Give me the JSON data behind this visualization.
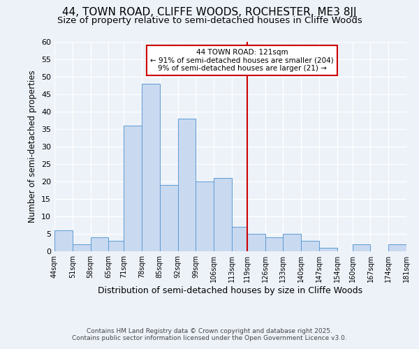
{
  "title": "44, TOWN ROAD, CLIFFE WOODS, ROCHESTER, ME3 8JJ",
  "subtitle": "Size of property relative to semi-detached houses in Cliffe Woods",
  "xlabel": "Distribution of semi-detached houses by size in Cliffe Woods",
  "ylabel": "Number of semi-detached properties",
  "bin_edges": [
    44,
    51,
    58,
    65,
    71,
    78,
    85,
    92,
    99,
    106,
    113,
    119,
    126,
    133,
    140,
    147,
    154,
    160,
    167,
    174,
    181
  ],
  "bar_heights": [
    6,
    2,
    4,
    3,
    36,
    48,
    19,
    38,
    20,
    21,
    7,
    5,
    4,
    5,
    3,
    1,
    0,
    2,
    0,
    2
  ],
  "bar_color": "#c9d9f0",
  "bar_edgecolor": "#5b9bd5",
  "vline_x": 119,
  "vline_color": "#cc0000",
  "ylim": [
    0,
    60
  ],
  "yticks": [
    0,
    5,
    10,
    15,
    20,
    25,
    30,
    35,
    40,
    45,
    50,
    55,
    60
  ],
  "annotation_title": "44 TOWN ROAD: 121sqm",
  "annotation_line1": "← 91% of semi-detached houses are smaller (204)",
  "annotation_line2": "9% of semi-detached houses are larger (21) →",
  "annotation_box_color": "#ffffff",
  "annotation_box_edgecolor": "#cc0000",
  "bg_color": "#edf2f9",
  "plot_bg_color": "#edf2f9",
  "footer1": "Contains HM Land Registry data © Crown copyright and database right 2025.",
  "footer2": "Contains public sector information licensed under the Open Government Licence v3.0.",
  "title_fontsize": 11,
  "subtitle_fontsize": 9.5,
  "xlabel_fontsize": 9,
  "ylabel_fontsize": 8.5,
  "footer_fontsize": 6.5,
  "annot_fontsize": 7.5
}
